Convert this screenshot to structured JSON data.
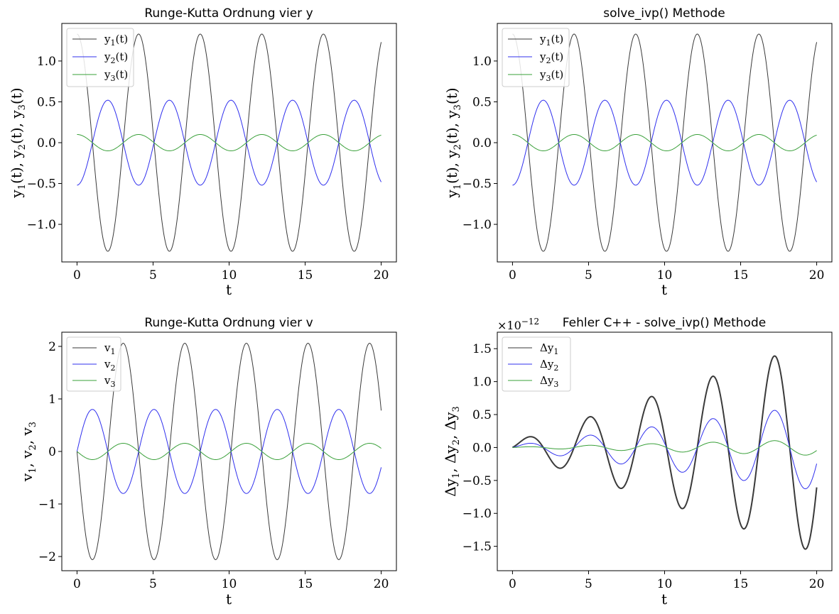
{
  "colors": {
    "series1": "#3a3a3a",
    "series2": "#3030ee",
    "series3": "#3aa03a"
  },
  "chart_data": [
    {
      "type": "line",
      "title": "Runge-Kutta Ordnung vier y",
      "xlabel": "t",
      "ylabel": "y1(t), y2(t), y3(t)",
      "xlim": [
        -1,
        21
      ],
      "ylim": [
        -1.46,
        1.46
      ],
      "xticks": [
        0,
        5,
        10,
        15,
        20
      ],
      "yticks": [
        -1.0,
        -0.5,
        0.0,
        0.5,
        1.0
      ],
      "ytick_labels": [
        "−1.0",
        "−0.5",
        "0.0",
        "0.5",
        "1.0"
      ],
      "grid": false,
      "legend_position": "upper-left",
      "series": [
        {
          "name": "y1(t)",
          "kind": "cos",
          "amplitude": 1.33,
          "period": 4.05,
          "phase": 0,
          "t_range": [
            0,
            20
          ]
        },
        {
          "name": "y2(t)",
          "kind": "cos",
          "amplitude": -0.52,
          "period": 4.05,
          "phase": 0,
          "t_range": [
            0,
            20
          ]
        },
        {
          "name": "y3(t)",
          "kind": "cos",
          "amplitude": 0.1,
          "period": 4.05,
          "phase": 0,
          "t_range": [
            0,
            20
          ]
        }
      ]
    },
    {
      "type": "line",
      "title": "solve_ivp() Methode",
      "xlabel": "t",
      "ylabel": "y1(t), y2(t), y3(t)",
      "xlim": [
        -1,
        21
      ],
      "ylim": [
        -1.46,
        1.46
      ],
      "xticks": [
        0,
        5,
        10,
        15,
        20
      ],
      "yticks": [
        -1.0,
        -0.5,
        0.0,
        0.5,
        1.0
      ],
      "ytick_labels": [
        "−1.0",
        "−0.5",
        "0.0",
        "0.5",
        "1.0"
      ],
      "grid": false,
      "legend_position": "upper-left",
      "series": [
        {
          "name": "y1(t)",
          "kind": "cos",
          "amplitude": 1.33,
          "period": 4.05,
          "phase": 0,
          "t_range": [
            0,
            20
          ]
        },
        {
          "name": "y2(t)",
          "kind": "cos",
          "amplitude": -0.52,
          "period": 4.05,
          "phase": 0,
          "t_range": [
            0,
            20
          ]
        },
        {
          "name": "y3(t)",
          "kind": "cos",
          "amplitude": 0.1,
          "period": 4.05,
          "phase": 0,
          "t_range": [
            0,
            20
          ]
        }
      ]
    },
    {
      "type": "line",
      "title": "Runge-Kutta Ordnung vier v",
      "xlabel": "t",
      "ylabel": "v1, v2, v3",
      "xlim": [
        -1,
        21
      ],
      "ylim": [
        -2.27,
        2.27
      ],
      "xticks": [
        0,
        5,
        10,
        15,
        20
      ],
      "yticks": [
        -2,
        -1,
        0,
        1,
        2
      ],
      "ytick_labels": [
        "−2",
        "−1",
        "0",
        "1",
        "2"
      ],
      "grid": false,
      "legend_position": "upper-left",
      "series": [
        {
          "name": "v1",
          "kind": "sin",
          "amplitude": -2.06,
          "period": 4.05,
          "phase": 0,
          "t_range": [
            0,
            20
          ]
        },
        {
          "name": "v2",
          "kind": "sin",
          "amplitude": 0.8,
          "period": 4.05,
          "phase": 0,
          "t_range": [
            0,
            20
          ]
        },
        {
          "name": "v3",
          "kind": "sin",
          "amplitude": -0.155,
          "period": 4.05,
          "phase": 0,
          "t_range": [
            0,
            20
          ]
        }
      ]
    },
    {
      "type": "line",
      "title": "Fehler C++ - solve_ivp() Methode",
      "xlabel": "t",
      "ylabel": "Δy1, Δy2, Δy3",
      "scale_label": "×10−12",
      "xlim": [
        -1,
        21
      ],
      "ylim": [
        -1.87,
        1.75
      ],
      "xticks": [
        0,
        5,
        10,
        15,
        20
      ],
      "yticks": [
        -1.5,
        -1.0,
        -0.5,
        0.0,
        0.5,
        1.0,
        1.5
      ],
      "ytick_labels": [
        "−1.5",
        "−1.0",
        "−0.5",
        "0.0",
        "0.5",
        "1.0",
        "1.5"
      ],
      "grid": false,
      "legend_position": "upper-left",
      "series": [
        {
          "name": "Δy1",
          "kind": "growing-sin",
          "amplitude_start": 0.08,
          "amplitude_end": 1.6,
          "period": 4.05,
          "t_range": [
            0,
            20
          ]
        },
        {
          "name": "Δy2",
          "kind": "growing-sin",
          "amplitude_start": 0.03,
          "amplitude_end": 0.65,
          "period": 4.05,
          "t_range": [
            0,
            20
          ]
        },
        {
          "name": "Δy3",
          "kind": "growing-sin",
          "amplitude_start": 0.005,
          "amplitude_end": 0.12,
          "period": 4.05,
          "t_range": [
            0,
            20
          ]
        }
      ]
    }
  ]
}
